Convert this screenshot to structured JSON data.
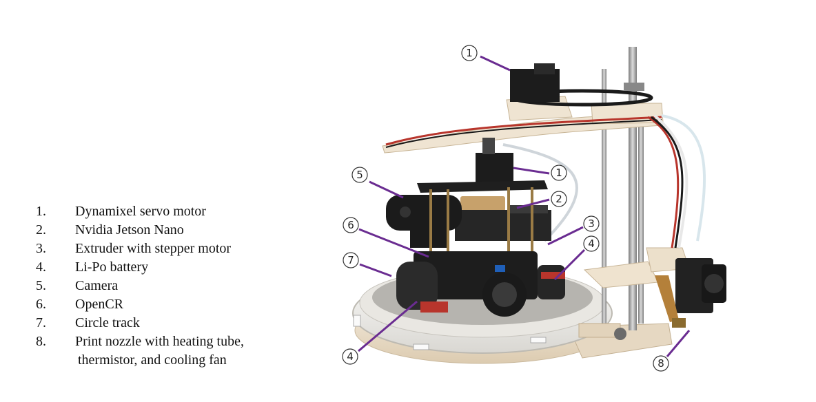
{
  "legend": {
    "items": [
      {
        "num": "1.",
        "text": "Dynamixel servo motor"
      },
      {
        "num": "2.",
        "text": "Nvidia Jetson Nano"
      },
      {
        "num": "3.",
        "text": "Extruder with stepper motor"
      },
      {
        "num": "4.",
        "text": "Li-Po battery"
      },
      {
        "num": "5.",
        "text": "Camera"
      },
      {
        "num": "6.",
        "text": "OpenCR"
      },
      {
        "num": "7.",
        "text": "Circle track"
      },
      {
        "num": "8.",
        "text": "Print nozzle with heating tube,",
        "continuation": "thermistor, and cooling fan"
      }
    ]
  },
  "callouts": [
    {
      "id": "top-servo",
      "label": "1"
    },
    {
      "id": "mid-servo",
      "label": "1"
    },
    {
      "id": "jetson",
      "label": "2"
    },
    {
      "id": "extruder",
      "label": "3"
    },
    {
      "id": "battery-right",
      "label": "4"
    },
    {
      "id": "battery-bottom",
      "label": "4"
    },
    {
      "id": "camera",
      "label": "5"
    },
    {
      "id": "opencr",
      "label": "6"
    },
    {
      "id": "track",
      "label": "7"
    },
    {
      "id": "nozzle",
      "label": "8"
    }
  ],
  "colors": {
    "leader_line": "#6a2c91",
    "resin": "#efe4d2",
    "track": "#f2f2f0",
    "dark": "#1f1f1f",
    "metal": "#a8a8a8",
    "wire_red": "#b8352c"
  }
}
